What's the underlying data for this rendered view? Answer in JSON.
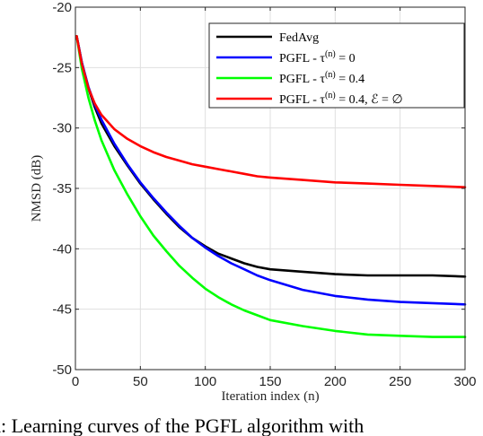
{
  "chart_data": {
    "type": "line",
    "title": "",
    "xlabel": "Iteration index (n)",
    "ylabel": "NMSD (dB)",
    "xlim": [
      0,
      300
    ],
    "ylim": [
      -50,
      -20
    ],
    "xticks": [
      0,
      50,
      100,
      150,
      200,
      250,
      300
    ],
    "yticks": [
      -20,
      -25,
      -30,
      -35,
      -40,
      -45,
      -50
    ],
    "grid": true,
    "legend_position": "top-right",
    "series": [
      {
        "name": "FedAvg",
        "color": "#000000",
        "x": [
          1,
          5,
          10,
          15,
          20,
          30,
          40,
          50,
          60,
          70,
          80,
          90,
          100,
          110,
          120,
          130,
          140,
          150,
          175,
          200,
          225,
          250,
          275,
          300
        ],
        "y": [
          -22.4,
          -24.6,
          -26.7,
          -28.3,
          -29.6,
          -31.5,
          -33.1,
          -34.6,
          -35.9,
          -37.1,
          -38.2,
          -39.1,
          -39.8,
          -40.4,
          -40.8,
          -41.2,
          -41.5,
          -41.7,
          -41.9,
          -42.1,
          -42.2,
          -42.2,
          -42.2,
          -42.3
        ]
      },
      {
        "name": "PGFL - τ(n) = 0",
        "color": "#0000ff",
        "x": [
          1,
          5,
          10,
          15,
          20,
          30,
          40,
          50,
          60,
          70,
          80,
          90,
          100,
          110,
          120,
          130,
          140,
          150,
          175,
          200,
          225,
          250,
          275,
          300
        ],
        "y": [
          -22.4,
          -24.6,
          -26.6,
          -28.1,
          -29.3,
          -31.3,
          -33.0,
          -34.5,
          -35.8,
          -37.0,
          -38.1,
          -39.1,
          -39.9,
          -40.6,
          -41.2,
          -41.7,
          -42.2,
          -42.6,
          -43.4,
          -43.9,
          -44.2,
          -44.4,
          -44.5,
          -44.6
        ]
      },
      {
        "name": "PGFL - τ(n) = 0.4",
        "color": "#00ff00",
        "x": [
          1,
          5,
          10,
          15,
          20,
          30,
          40,
          50,
          60,
          70,
          80,
          90,
          100,
          110,
          120,
          130,
          140,
          150,
          175,
          200,
          225,
          250,
          275,
          300
        ],
        "y": [
          -22.4,
          -25.1,
          -27.5,
          -29.4,
          -31.0,
          -33.5,
          -35.5,
          -37.3,
          -38.9,
          -40.2,
          -41.4,
          -42.4,
          -43.3,
          -44.0,
          -44.6,
          -45.1,
          -45.5,
          -45.9,
          -46.4,
          -46.8,
          -47.1,
          -47.2,
          -47.3,
          -47.3
        ]
      },
      {
        "name": "PGFL - τ(n) = 0.4, ℰ = ∅",
        "color": "#ff0000",
        "x": [
          1,
          5,
          10,
          15,
          20,
          30,
          40,
          50,
          60,
          70,
          80,
          90,
          100,
          110,
          120,
          130,
          140,
          150,
          175,
          200,
          225,
          250,
          275,
          300
        ],
        "y": [
          -22.4,
          -24.7,
          -26.7,
          -28.0,
          -28.9,
          -30.1,
          -30.9,
          -31.5,
          -32.0,
          -32.4,
          -32.7,
          -33.0,
          -33.2,
          -33.4,
          -33.6,
          -33.8,
          -34.0,
          -34.1,
          -34.3,
          -34.5,
          -34.6,
          -34.7,
          -34.8,
          -34.9
        ]
      }
    ],
    "legend": [
      {
        "label_main": "FedAvg",
        "label_sup": "",
        "label_tail": ""
      },
      {
        "label_main": "PGFL - τ",
        "label_sup": "(n)",
        "label_tail": " = 0"
      },
      {
        "label_main": "PGFL - τ",
        "label_sup": "(n)",
        "label_tail": " = 0.4"
      },
      {
        "label_main": "PGFL - τ",
        "label_sup": "(n)",
        "label_tail": " = 0.4, ℰ = ∅"
      }
    ]
  },
  "caption_fragment": "d: Learning curves of the PGFL algorithm with"
}
